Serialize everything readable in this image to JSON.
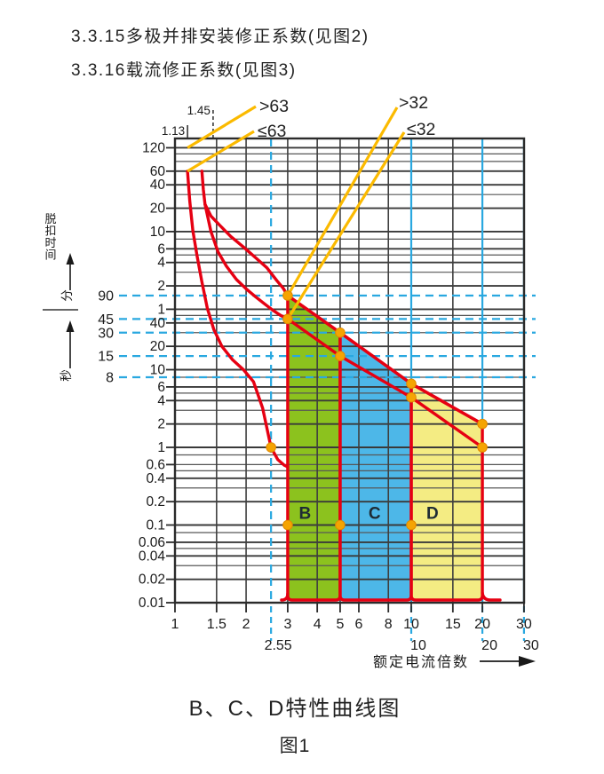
{
  "page": {
    "section_lines": [
      "3.3.15多极并排安装修正系数(见图2)",
      "3.3.16载流修正系数(见图3)"
    ],
    "caption": "B、C、D特性曲线图",
    "figure_label": "图1"
  },
  "colors": {
    "curve_red": "#e60012",
    "region_b_green": "#8cc21e",
    "region_c_blue": "#4db7e8",
    "region_d_yellow": "#f4ec83",
    "cyan_line": "#29a8e0",
    "callout_yellow": "#fbba00",
    "marker_orange": "#f5a402",
    "grid_dark": "#3a3a3a",
    "grid_light": "#575757",
    "text": "#1a1a1a",
    "region_letter": "#1e2b34"
  },
  "chart_data": {
    "type": "line",
    "title": "B、C、D特性曲线图",
    "xlabel": "额定电流倍数",
    "ylabel": "脱扣时间",
    "x_range": [
      1,
      30
    ],
    "x_log": true,
    "y_log": true,
    "y_units": "seconds (top part labeled in minutes)",
    "x_ticks": [
      1,
      1.5,
      2,
      3,
      4,
      5,
      6,
      8,
      10,
      15,
      20,
      30
    ],
    "x_secondary_ticks": [
      2.55,
      10,
      20,
      30
    ],
    "y_ticks_minutes": [
      120,
      60,
      40,
      20,
      10,
      6,
      4,
      2,
      1
    ],
    "y_ticks_seconds": [
      40,
      20,
      10,
      6,
      4,
      2,
      1,
      0.6,
      0.4,
      0.2,
      0.1,
      0.06,
      0.04,
      0.02,
      0.01
    ],
    "dashed_second_lines": [
      90,
      45,
      30,
      15,
      8
    ],
    "cyan_vertical_solid": [
      10,
      20,
      30
    ],
    "cyan_vertical_dashed": [
      2.55
    ],
    "axis_notes": {
      "trip_time": "脱扣时间",
      "minutes": "分",
      "seconds": "秒"
    },
    "top_marks": [
      {
        "label": "1.13",
        "x": 1.13,
        "style": "solid"
      },
      {
        "label": "1.45",
        "x": 1.45,
        "style": "dashed"
      }
    ],
    "callouts": [
      {
        "label": ">63",
        "target_x": 1.13,
        "target_s": 7200
      },
      {
        "label": "≤63",
        "target_x": 1.13,
        "target_s": 3600
      },
      {
        "label": ">32",
        "target_x": 3,
        "target_s": 90
      },
      {
        "label": "≤32",
        "target_x": 3,
        "target_s": 45
      }
    ],
    "regions": [
      {
        "name": "B",
        "x1": 3,
        "x2": 5,
        "y_top1": 90,
        "y_top2": 30,
        "label_x": 3.55,
        "label_s": 0.13,
        "color": "#8cc21e"
      },
      {
        "name": "C",
        "x1": 5,
        "x2": 10,
        "y_top1": 30,
        "y_top2": 6.6,
        "label_x": 7.0,
        "label_s": 0.13,
        "color": "#4db7e8"
      },
      {
        "name": "D",
        "x1": 10,
        "x2": 20,
        "y_top1": 6.6,
        "y_top2": 2,
        "label_x": 12.3,
        "label_s": 0.13,
        "color": "#f4ec83"
      }
    ],
    "series": [
      {
        "name": "non-trip boundary (1.13 In)",
        "points": [
          [
            1.13,
            3600
          ],
          [
            1.155,
            1500
          ],
          [
            1.19,
            620
          ],
          [
            1.24,
            290
          ],
          [
            1.3,
            135
          ],
          [
            1.37,
            62
          ],
          [
            1.46,
            33
          ],
          [
            1.58,
            20
          ],
          [
            1.75,
            13.5
          ],
          [
            1.95,
            10
          ],
          [
            2.15,
            7
          ],
          [
            2.35,
            3.2
          ],
          [
            2.55,
            1.0
          ],
          [
            2.72,
            0.7
          ],
          [
            2.9,
            0.59
          ],
          [
            3.0,
            0.56
          ]
        ]
      },
      {
        "name": "thermal trip upper boundary",
        "points": [
          [
            1.3,
            3600
          ],
          [
            1.318,
            2100
          ],
          [
            1.34,
            1350
          ],
          [
            1.42,
            950
          ],
          [
            1.55,
            720
          ],
          [
            1.72,
            520
          ],
          [
            1.95,
            380
          ],
          [
            2.2,
            275
          ],
          [
            2.45,
            205
          ],
          [
            2.7,
            140
          ],
          [
            2.87,
            112
          ],
          [
            3.0,
            90
          ]
        ]
      },
      {
        "name": "thermal trip lower boundary",
        "points": [
          [
            1.34,
            1350
          ],
          [
            1.42,
            600
          ],
          [
            1.52,
            330
          ],
          [
            1.65,
            215
          ],
          [
            1.82,
            145
          ],
          [
            2.0,
            110
          ],
          [
            2.2,
            86
          ],
          [
            2.4,
            70
          ],
          [
            2.6,
            58
          ],
          [
            2.8,
            50
          ],
          [
            3.0,
            45
          ]
        ]
      },
      {
        "name": "band upper limit",
        "points": [
          [
            3,
            90
          ],
          [
            5,
            30
          ],
          [
            10,
            6.6
          ],
          [
            20,
            2
          ]
        ]
      },
      {
        "name": "band lower limit",
        "points": [
          [
            3,
            45
          ],
          [
            5,
            15
          ],
          [
            10,
            4.4
          ],
          [
            20,
            1
          ]
        ]
      }
    ],
    "markers": [
      [
        2.55,
        1
      ],
      [
        3,
        90
      ],
      [
        3,
        45
      ],
      [
        3,
        0.1
      ],
      [
        5,
        30
      ],
      [
        5,
        15
      ],
      [
        5,
        0.1
      ],
      [
        10,
        6.6
      ],
      [
        10,
        4.4
      ],
      [
        10,
        0.1
      ],
      [
        20,
        2
      ],
      [
        20,
        1
      ]
    ]
  }
}
